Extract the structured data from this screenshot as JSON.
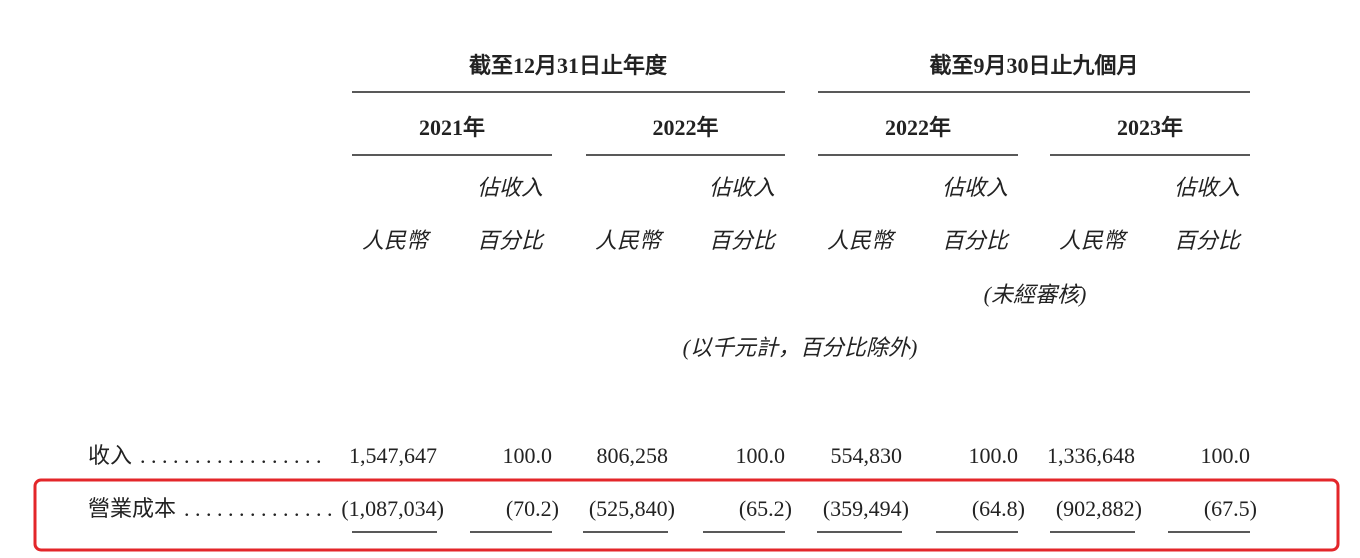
{
  "table": {
    "groups": [
      "截至12月31日止年度",
      "截至9月30日止九個月"
    ],
    "years": [
      "2021年",
      "2022年",
      "2022年",
      "2023年"
    ],
    "columns": [
      [
        "人民幣"
      ],
      [
        "佔收入",
        "百分比"
      ],
      [
        "人民幣"
      ],
      [
        "佔收入",
        "百分比"
      ],
      [
        "人民幣"
      ],
      [
        "佔收入",
        "百分比"
      ],
      [
        "人民幣"
      ],
      [
        "佔收入",
        "百分比"
      ]
    ],
    "note_unaudited": "(未經審核)",
    "note_units": "(以千元計，百分比除外)",
    "rows": [
      {
        "label": "收入",
        "leader": ". . . . . . . . . . . . . . . . .",
        "cells": [
          "1,547,647",
          "100.0",
          "806,258",
          "100.0",
          "554,830",
          "100.0",
          "1,336,648",
          "100.0"
        ]
      },
      {
        "label": "營業成本",
        "leader": ". . . . . . . . . . . . . .",
        "cells": [
          "(1,087,034)",
          "(70.2)",
          "(525,840)",
          "(65.2)",
          "(359,494)",
          "(64.8)",
          "(902,882)",
          "(67.5)"
        ]
      }
    ]
  }
}
